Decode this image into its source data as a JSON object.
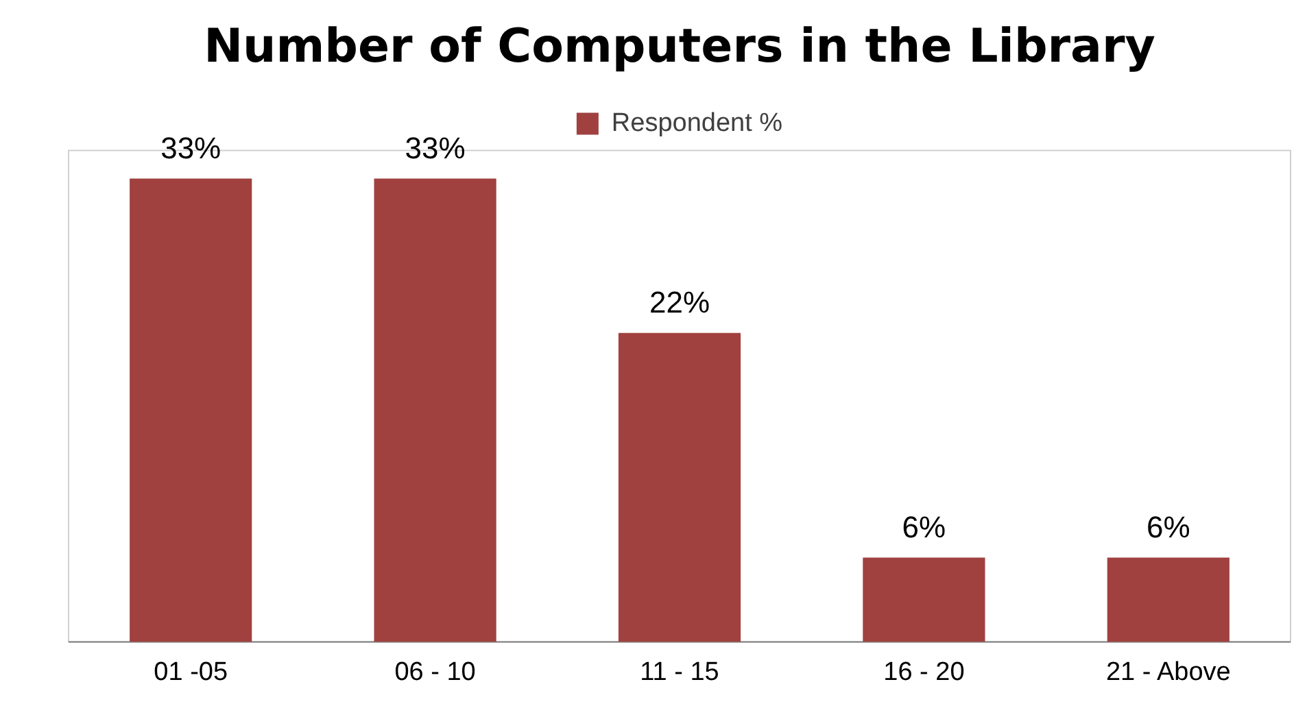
{
  "chart_data": {
    "type": "bar",
    "title": "Number of Computers in the Library",
    "categories": [
      "01 -05",
      "06 - 10",
      "11 - 15",
      "16 - 20",
      "21 - Above"
    ],
    "series": [
      {
        "name": "Respondent %",
        "color": "#a0413f",
        "values": [
          33,
          33,
          22,
          6,
          6
        ],
        "value_labels": [
          "33%",
          "33%",
          "22%",
          "6%",
          "6%"
        ]
      }
    ],
    "ylim": [
      0,
      35
    ],
    "tick_labels": "x",
    "grid": false,
    "legend": "top"
  }
}
